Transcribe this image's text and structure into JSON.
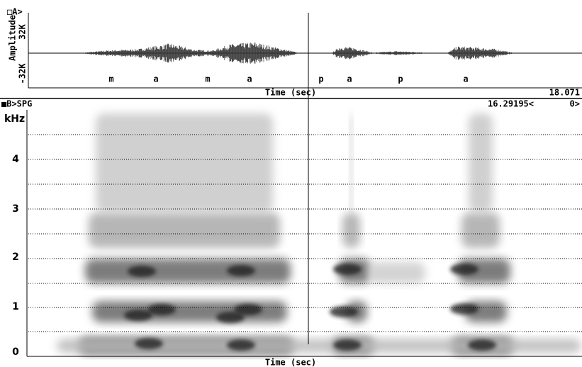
{
  "panel_a": {
    "label": "□A>",
    "y_axis_label": "Amplitude",
    "y_max": "32K",
    "y_min": "-32K",
    "segments": [
      "m",
      "a",
      "m",
      "a",
      "p",
      "a",
      "p",
      "a"
    ],
    "x_axis_label": "Time (sec)",
    "end_time": "18.071"
  },
  "panel_b": {
    "label": "■B>SPG",
    "cursor_time": "16.29195<",
    "cursor_value": "0>",
    "y_unit": "kHz",
    "y_ticks": [
      "4",
      "3",
      "2",
      "1",
      "0"
    ],
    "x_axis_label": "Time (sec)"
  }
}
